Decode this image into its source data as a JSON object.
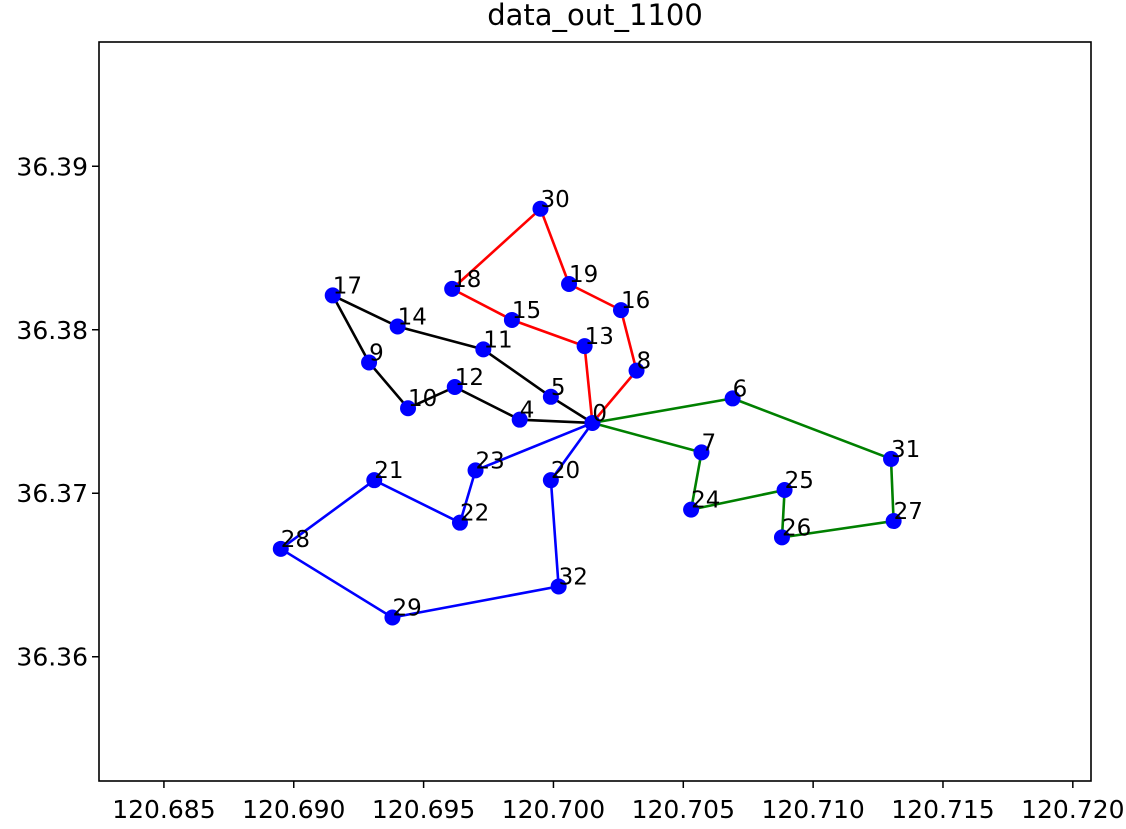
{
  "chart_data": {
    "type": "line",
    "title": "data_out_1100",
    "xlabel": "",
    "ylabel": "",
    "xlim": [
      120.6825,
      120.7207
    ],
    "ylim": [
      36.3524,
      36.3976
    ],
    "x_ticks": [
      120.685,
      120.69,
      120.695,
      120.7,
      120.705,
      120.71,
      120.715,
      120.72
    ],
    "x_tick_labels": [
      "120.685",
      "120.690",
      "120.695",
      "120.700",
      "120.705",
      "120.710",
      "120.715",
      "120.720"
    ],
    "y_ticks": [
      36.36,
      36.37,
      36.38,
      36.39
    ],
    "y_tick_labels": [
      "36.36",
      "36.37",
      "36.38",
      "36.39"
    ],
    "grid": false,
    "point_color": "#0000ff",
    "points": [
      {
        "label": "0",
        "x": 120.7015,
        "y": 36.3743
      },
      {
        "label": "4",
        "x": 120.6987,
        "y": 36.3745
      },
      {
        "label": "5",
        "x": 120.6999,
        "y": 36.3759
      },
      {
        "label": "6",
        "x": 120.7069,
        "y": 36.3758
      },
      {
        "label": "7",
        "x": 120.7057,
        "y": 36.3725
      },
      {
        "label": "8",
        "x": 120.7032,
        "y": 36.3775
      },
      {
        "label": "9",
        "x": 120.6929,
        "y": 36.378
      },
      {
        "label": "10",
        "x": 120.6944,
        "y": 36.3752
      },
      {
        "label": "11",
        "x": 120.6973,
        "y": 36.3788
      },
      {
        "label": "12",
        "x": 120.6962,
        "y": 36.3765
      },
      {
        "label": "13",
        "x": 120.7012,
        "y": 36.379
      },
      {
        "label": "14",
        "x": 120.694,
        "y": 36.3802
      },
      {
        "label": "15",
        "x": 120.6984,
        "y": 36.3806
      },
      {
        "label": "16",
        "x": 120.7026,
        "y": 36.3812
      },
      {
        "label": "17",
        "x": 120.6915,
        "y": 36.3821
      },
      {
        "label": "18",
        "x": 120.6961,
        "y": 36.3825
      },
      {
        "label": "19",
        "x": 120.7006,
        "y": 36.3828
      },
      {
        "label": "20",
        "x": 120.6999,
        "y": 36.3708
      },
      {
        "label": "21",
        "x": 120.6931,
        "y": 36.3708
      },
      {
        "label": "22",
        "x": 120.6964,
        "y": 36.3682
      },
      {
        "label": "23",
        "x": 120.697,
        "y": 36.3714
      },
      {
        "label": "24",
        "x": 120.7053,
        "y": 36.369
      },
      {
        "label": "25",
        "x": 120.7089,
        "y": 36.3702
      },
      {
        "label": "26",
        "x": 120.7088,
        "y": 36.3673
      },
      {
        "label": "27",
        "x": 120.7131,
        "y": 36.3683
      },
      {
        "label": "28",
        "x": 120.6895,
        "y": 36.3666
      },
      {
        "label": "29",
        "x": 120.6938,
        "y": 36.3624
      },
      {
        "label": "30",
        "x": 120.6995,
        "y": 36.3874
      },
      {
        "label": "31",
        "x": 120.713,
        "y": 36.3721
      },
      {
        "label": "32",
        "x": 120.7002,
        "y": 36.3643
      }
    ],
    "series": [
      {
        "color": "#000000",
        "route": [
          "0",
          "4",
          "12",
          "10",
          "9",
          "17",
          "14",
          "11",
          "5",
          "0"
        ]
      },
      {
        "color": "#ff0000",
        "route": [
          "0",
          "13",
          "15",
          "18",
          "30",
          "19",
          "16",
          "8",
          "0"
        ]
      },
      {
        "color": "#008000",
        "route": [
          "0",
          "6",
          "31",
          "27",
          "26",
          "25",
          "24",
          "7",
          "0"
        ]
      },
      {
        "color": "#0000ff",
        "route": [
          "0",
          "23",
          "22",
          "21",
          "28",
          "29",
          "32",
          "20",
          "0"
        ]
      }
    ]
  }
}
